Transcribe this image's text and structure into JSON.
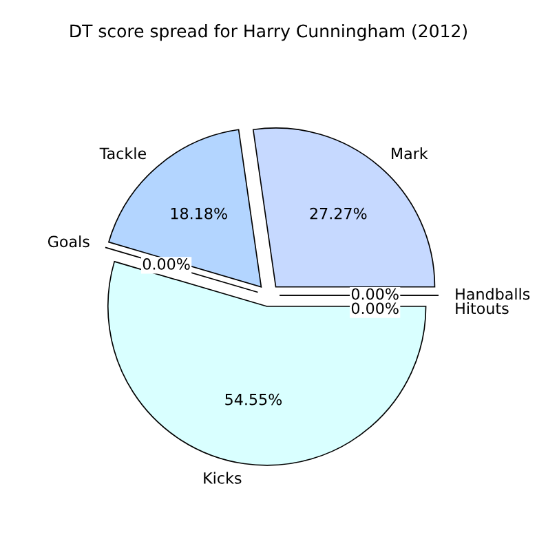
{
  "chart_data": {
    "type": "pie",
    "title": "DT score spread for Harry Cunningham (2012)",
    "categories": [
      "Mark",
      "Tackle",
      "Goals",
      "Kicks",
      "Handballs",
      "Hitouts"
    ],
    "values": [
      27.27,
      18.18,
      0,
      54.55,
      0,
      0
    ],
    "value_labels": [
      "27.27%",
      "18.18%",
      "0.00%",
      "54.55%",
      "0.00%",
      "0.00%"
    ],
    "colors": [
      "#c6d9ff",
      "#b3d5ff",
      "#b3d5ff",
      "#d9ffff",
      "#e6e6ff",
      "#ffe6e6"
    ],
    "legend": false
  }
}
